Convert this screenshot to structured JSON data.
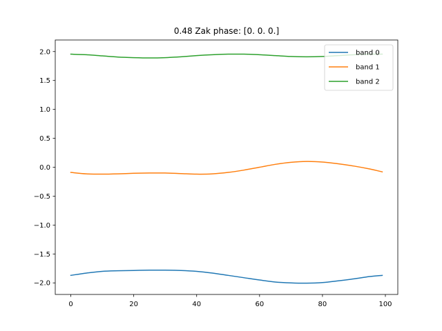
{
  "chart_data": {
    "type": "line",
    "title": "0.48 Zak phase: [0. 0. 0.]",
    "xlabel": "",
    "ylabel": "",
    "xlim": [
      -4.95,
      103.95
    ],
    "ylim": [
      -2.2,
      2.2
    ],
    "xticks": [
      0,
      20,
      40,
      60,
      80,
      100
    ],
    "yticks": [
      -2.0,
      -1.5,
      -1.0,
      -0.5,
      0.0,
      0.5,
      1.0,
      1.5,
      2.0
    ],
    "ytick_labels": [
      "−2.0",
      "−1.5",
      "−1.0",
      "−0.5",
      "0.0",
      "0.5",
      "1.0",
      "1.5",
      "2.0"
    ],
    "grid": false,
    "legend_position": "top-right",
    "series": [
      {
        "name": "band 0",
        "color": "#1f77b4",
        "x": [
          0,
          5,
          10,
          15,
          20,
          25,
          30,
          35,
          40,
          45,
          50,
          55,
          60,
          65,
          70,
          75,
          80,
          85,
          90,
          95,
          99
        ],
        "y": [
          -1.87,
          -1.83,
          -1.8,
          -1.79,
          -1.785,
          -1.78,
          -1.78,
          -1.785,
          -1.8,
          -1.83,
          -1.87,
          -1.91,
          -1.95,
          -1.985,
          -2.0,
          -2.005,
          -1.995,
          -1.965,
          -1.93,
          -1.89,
          -1.87
        ]
      },
      {
        "name": "band 1",
        "color": "#ff7f0e",
        "x": [
          0,
          5,
          10,
          15,
          20,
          25,
          30,
          35,
          40,
          45,
          50,
          55,
          60,
          65,
          70,
          75,
          80,
          85,
          90,
          95,
          99
        ],
        "y": [
          -0.09,
          -0.115,
          -0.12,
          -0.115,
          -0.105,
          -0.1,
          -0.1,
          -0.11,
          -0.12,
          -0.115,
          -0.09,
          -0.05,
          0.0,
          0.05,
          0.085,
          0.1,
          0.09,
          0.06,
          0.02,
          -0.03,
          -0.08
        ]
      },
      {
        "name": "band 2",
        "color": "#2ca02c",
        "x": [
          0,
          5,
          10,
          15,
          20,
          25,
          30,
          35,
          40,
          45,
          50,
          55,
          60,
          65,
          70,
          75,
          80,
          85,
          90,
          95,
          99
        ],
        "y": [
          1.955,
          1.945,
          1.925,
          1.905,
          1.895,
          1.89,
          1.895,
          1.91,
          1.93,
          1.945,
          1.955,
          1.955,
          1.945,
          1.93,
          1.915,
          1.91,
          1.915,
          1.93,
          1.945,
          1.955,
          1.955
        ]
      }
    ]
  }
}
